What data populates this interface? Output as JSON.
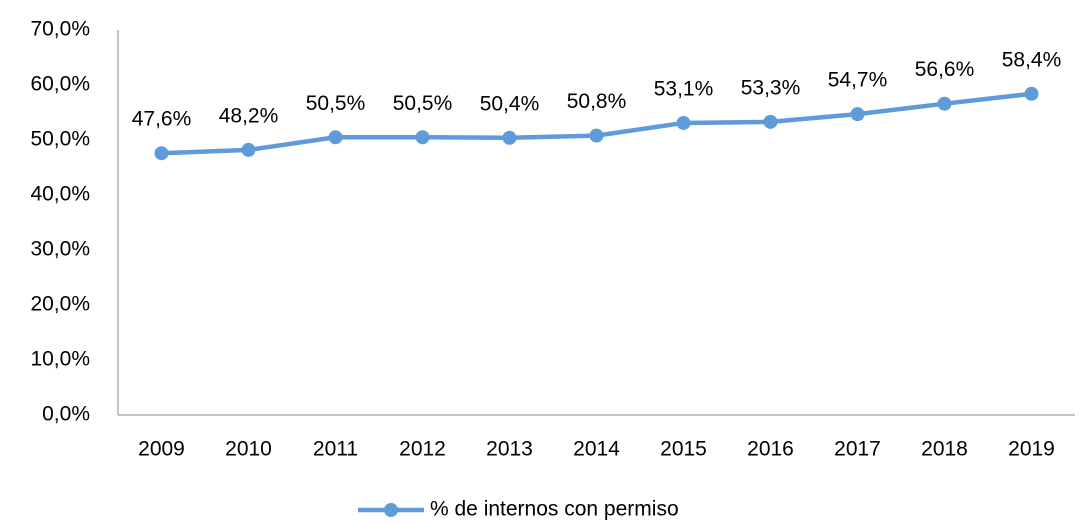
{
  "chart_data": {
    "type": "line",
    "categories": [
      "2009",
      "2010",
      "2011",
      "2012",
      "2013",
      "2014",
      "2015",
      "2016",
      "2017",
      "2018",
      "2019"
    ],
    "series": [
      {
        "name": "% de internos con permiso",
        "color": "#5f9bd8",
        "values": [
          47.6,
          48.2,
          50.5,
          50.5,
          50.4,
          50.8,
          53.1,
          53.3,
          54.7,
          56.6,
          58.4
        ],
        "value_labels": [
          "47,6%",
          "48,2%",
          "50,5%",
          "50,5%",
          "50,4%",
          "50,8%",
          "53,1%",
          "53,3%",
          "54,7%",
          "56,6%",
          "58,4%"
        ]
      }
    ],
    "ylim": [
      0,
      70
    ],
    "yticks": [
      {
        "value": 0,
        "label": "0,0%"
      },
      {
        "value": 10,
        "label": "10,0%"
      },
      {
        "value": 20,
        "label": "20,0%"
      },
      {
        "value": 30,
        "label": "30,0%"
      },
      {
        "value": 40,
        "label": "40,0%"
      },
      {
        "value": 50,
        "label": "50,0%"
      },
      {
        "value": 60,
        "label": "60,0%"
      },
      {
        "value": 70,
        "label": "70,0%"
      }
    ],
    "grid": false,
    "legend": "bottom"
  }
}
